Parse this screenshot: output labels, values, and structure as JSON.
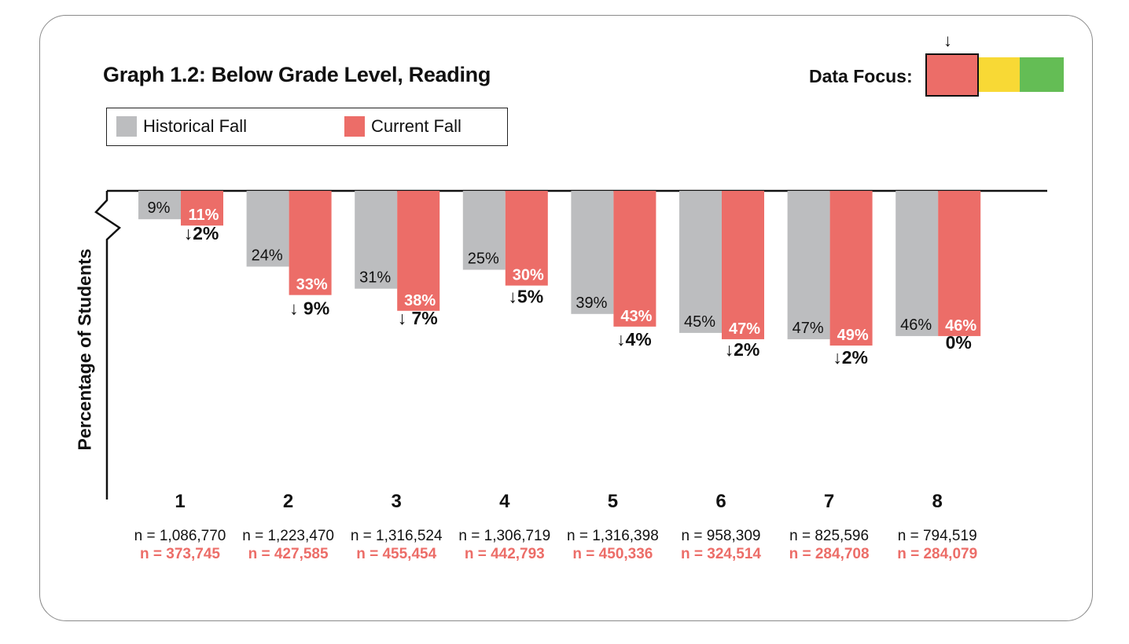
{
  "chart_data": {
    "type": "bar",
    "title": "Graph 1.2: Below Grade Level, Reading",
    "ylabel": "Percentage of Students",
    "xlabel": "",
    "orientation": "downward",
    "ylim": [
      0,
      75
    ],
    "categories": [
      "1",
      "2",
      "3",
      "4",
      "5",
      "6",
      "7",
      "8"
    ],
    "series": [
      {
        "name": "Historical Fall",
        "color": "#bcbdbf",
        "values": [
          9,
          24,
          31,
          25,
          39,
          45,
          47,
          46
        ],
        "labels": [
          "9%",
          "24%",
          "31%",
          "25%",
          "39%",
          "45%",
          "47%",
          "46%"
        ],
        "n_labels": [
          "n = 1,086,770",
          "n = 1,223,470",
          "n = 1,316,524",
          "n = 1,306,719",
          "n = 1,316,398",
          "n = 958,309",
          "n = 825,596",
          "n = 794,519"
        ]
      },
      {
        "name": "Current Fall",
        "color": "#ec6d68",
        "values": [
          11,
          33,
          38,
          30,
          43,
          47,
          49,
          46
        ],
        "labels": [
          "11%",
          "33%",
          "38%",
          "30%",
          "43%",
          "47%",
          "49%",
          "46%"
        ],
        "n_labels": [
          "n = 373,745",
          "n = 427,585",
          "n = 455,454",
          "n = 442,793",
          "n = 450,336",
          "n = 324,514",
          "n = 284,708",
          "n = 284,079"
        ]
      }
    ],
    "differences": [
      "↓2%",
      "↓ 9%",
      "↓ 7%",
      "↓5%",
      "↓4%",
      "↓2%",
      "↓2%",
      "0%"
    ],
    "legend": [
      "Historical Fall",
      "Current Fall"
    ],
    "legend_position": "top-left",
    "grid": false
  },
  "legend": {
    "historical_label": "Historical Fall",
    "current_label": "Current Fall"
  },
  "data_focus": {
    "label": "Data Focus:",
    "arrow": "↓",
    "selected_color": "#ec6d68",
    "colors": [
      "#ec6d68",
      "#f8d935",
      "#64bd55"
    ]
  }
}
